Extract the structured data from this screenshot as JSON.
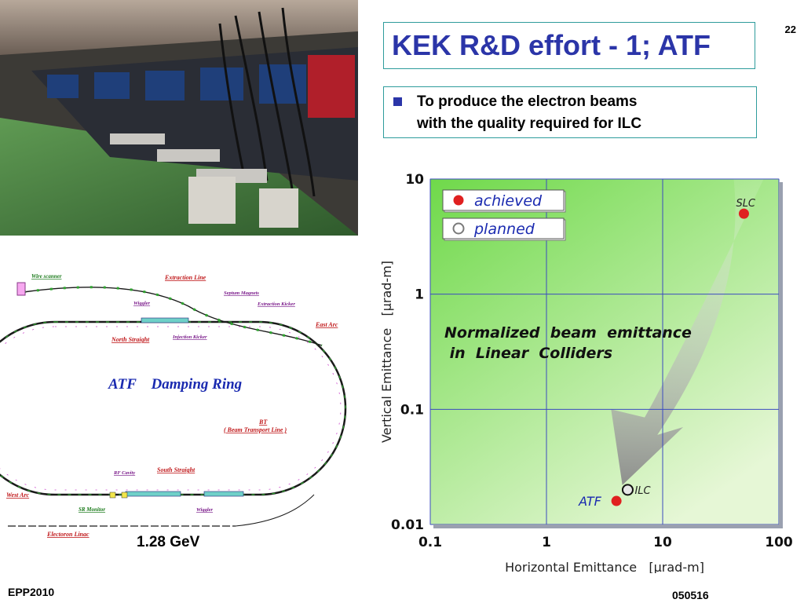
{
  "slide": {
    "number": "22",
    "title": "KEK R&D effort - 1; ATF",
    "bullet_lines": [
      "To produce the electron beams",
      "with the quality required for ILC"
    ],
    "footer_left": "EPP2010",
    "footer_right": "050516"
  },
  "ring_diagram": {
    "title": "ATF    Damping Ring",
    "energy": "1.28 GeV",
    "labels": {
      "wire_scanner": "Wire scanner",
      "extraction_line": "Extraction Line",
      "septum_magnets": "Septum Magnets",
      "wiggler_top": "Wiggler",
      "extraction_kicker": "Extraction Kicker",
      "east_arc": "East Arc",
      "north_straight": "North Straight",
      "injection_kicker": "Injection  Kicker",
      "bt": "BT",
      "bt_full": "( Beam  Transport Line )",
      "rf_cavity": "RF Cavity",
      "south_straight": "South Straight",
      "west_arc": "West Arc",
      "sr_monitor": "SR Monitor",
      "wiggler_bottom": "Wiggler",
      "linac": "Electoron Linac"
    }
  },
  "chart_data": {
    "type": "scatter",
    "title": "Normalized  beam  emittance\n in  Linear  Colliders",
    "xlabel": "Horizontal Emittance   [µrad-m]",
    "ylabel": "Vertical Emittance   [µrad-m]",
    "xscale": "log",
    "yscale": "log",
    "xlim": [
      0.1,
      100
    ],
    "ylim": [
      0.01,
      10
    ],
    "xticks": [
      "0.1",
      "1",
      "10",
      "100"
    ],
    "yticks": [
      "0.01",
      "0.1",
      "1",
      "10"
    ],
    "grid": true,
    "legend": [
      {
        "label": "achieved",
        "marker": "filled",
        "color": "#e02020"
      },
      {
        "label": "planned",
        "marker": "open",
        "color": "#7a7a7a"
      }
    ],
    "legend_placement": "top-left",
    "series": [
      {
        "name": "achieved",
        "points": [
          {
            "x": 50,
            "y": 5,
            "label": "SLC"
          },
          {
            "x": 4,
            "y": 0.016,
            "label": "ATF"
          }
        ]
      },
      {
        "name": "planned",
        "points": [
          {
            "x": 5,
            "y": 0.02,
            "label": "ILC"
          }
        ]
      }
    ],
    "colors": {
      "background_top": "#6fd94a",
      "background_bottom": "#e6f7d6",
      "grid": "#3b4bbf",
      "arrow": "#8a8a8a"
    }
  }
}
